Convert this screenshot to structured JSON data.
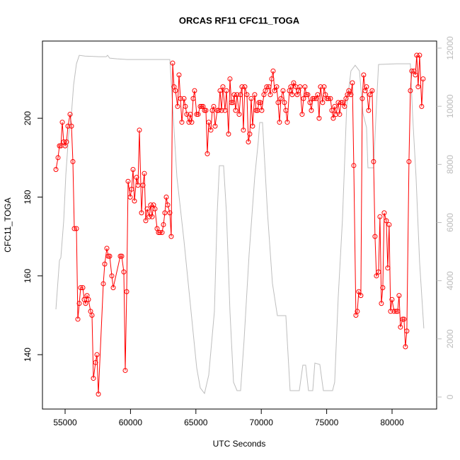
{
  "chart_data": {
    "type": "line",
    "title": "ORCAS RF11 CFC11_TOGA",
    "x_label": "UTC Seconds",
    "y_label": "CFC11_TOGA",
    "xlim": [
      53268,
      83409
    ],
    "xticks": [
      55000,
      60000,
      65000,
      70000,
      75000,
      80000
    ],
    "ylim": [
      126.2,
      219.6
    ],
    "yticks": [
      140,
      160,
      180,
      200
    ],
    "y2lim": [
      -414,
      12243
    ],
    "y2ticks": [
      0,
      2000,
      4000,
      6000,
      8000,
      10000,
      12000
    ],
    "series": [
      {
        "color": "#ff0000",
        "markers": true,
        "x": [
          54297,
          54459,
          54567,
          54675,
          54784,
          54892,
          55000,
          55108,
          55216,
          55379,
          55487,
          55595,
          55703,
          55866,
          55974,
          56082,
          56190,
          56353,
          56461,
          56569,
          56677,
          56785,
          56948,
          57056,
          57164,
          57326,
          57435,
          57543,
          57921,
          58030,
          58192,
          58300,
          58408,
          58571,
          58679,
          59220,
          59328,
          59490,
          59599,
          59707,
          59815,
          59977,
          60085,
          60194,
          60302,
          60464,
          60572,
          60681,
          60843,
          60951,
          61059,
          61167,
          61276,
          61438,
          61546,
          61654,
          61763,
          61871,
          62033,
          62141,
          62249,
          62412,
          62520,
          62628,
          62736,
          62845,
          63007,
          63115,
          63223,
          63331,
          63440,
          63602,
          63710,
          63818,
          63927,
          64089,
          64197,
          64305,
          64468,
          64576,
          64684,
          64792,
          64900,
          65063,
          65171,
          65333,
          65441,
          65550,
          65658,
          65766,
          65874,
          65982,
          66145,
          66253,
          66361,
          66469,
          66632,
          66740,
          66848,
          66956,
          67064,
          67227,
          67335,
          67497,
          67605,
          67714,
          67822,
          67930,
          68038,
          68146,
          68309,
          68417,
          68525,
          68633,
          68741,
          68904,
          69012,
          69120,
          69228,
          69337,
          69499,
          69607,
          69715,
          69823,
          69932,
          70040,
          70202,
          70310,
          70419,
          70581,
          70689,
          70797,
          70905,
          71014,
          71176,
          71284,
          71392,
          71501,
          71663,
          71771,
          71879,
          71987,
          72150,
          72258,
          72366,
          72474,
          72637,
          72745,
          72853,
          72961,
          73124,
          73232,
          73340,
          73448,
          73556,
          73719,
          73827,
          73935,
          74043,
          74206,
          74314,
          74422,
          74530,
          74692,
          74801,
          74909,
          75017,
          75125,
          75288,
          75396,
          75504,
          75612,
          75720,
          75883,
          75991,
          76099,
          76207,
          76370,
          76478,
          76586,
          76694,
          76856,
          76965,
          77073,
          77235,
          77343,
          77452,
          77614,
          77722,
          77830,
          77938,
          78047,
          78209,
          78317,
          78479,
          78588,
          78696,
          78804,
          78966,
          79075,
          79183,
          79291,
          79399,
          79561,
          79670,
          79778,
          79886,
          79994,
          80157,
          80319,
          80427,
          80535,
          80643,
          80806,
          80914,
          81022,
          81130,
          81293,
          81401,
          81509,
          81671,
          81780,
          81888,
          81996,
          82104,
          82266,
          82375
        ],
        "values": [
          187,
          190,
          193,
          193,
          199,
          194,
          193,
          194,
          198,
          201,
          198,
          189,
          172,
          172,
          149,
          153,
          157,
          157,
          154,
          153,
          155,
          154,
          151,
          150,
          134,
          138,
          140,
          130,
          158,
          163,
          167,
          165,
          165,
          160,
          157,
          165,
          165,
          161,
          136,
          156,
          184,
          180,
          182,
          187,
          179,
          185,
          183,
          197,
          176,
          183,
          186,
          174,
          177,
          175,
          178,
          175,
          178,
          177,
          172,
          171,
          171,
          171,
          173,
          176,
          180,
          178,
          176,
          170,
          214,
          208,
          207,
          203,
          211,
          205,
          199,
          205,
          203,
          201,
          199,
          201,
          199,
          205,
          207,
          201,
          201,
          203,
          203,
          203,
          202,
          202,
          191,
          199,
          197,
          202,
          203,
          198,
          202,
          202,
          207,
          202,
          208,
          202,
          207,
          196,
          210,
          204,
          204,
          206,
          202,
          206,
          201,
          206,
          208,
          197,
          208,
          206,
          194,
          196,
          205,
          198,
          206,
          202,
          202,
          204,
          204,
          202,
          206,
          207,
          208,
          208,
          206,
          210,
          212,
          207,
          208,
          204,
          199,
          205,
          207,
          204,
          202,
          199,
          207,
          208,
          206,
          209,
          208,
          206,
          207,
          208,
          201,
          205,
          208,
          206,
          206,
          204,
          202,
          205,
          205,
          205,
          206,
          200,
          208,
          204,
          208,
          206,
          205,
          205,
          205,
          202,
          200,
          203,
          201,
          204,
          201,
          204,
          204,
          203,
          205,
          206,
          207,
          206,
          209,
          188,
          150,
          151,
          156,
          155,
          205,
          211,
          207,
          208,
          202,
          206,
          207,
          189,
          170,
          160,
          161,
          175,
          153,
          157,
          176,
          174,
          162,
          173,
          151,
          154,
          151,
          151,
          151,
          155,
          147,
          149,
          149,
          142,
          146,
          189,
          207,
          212,
          212,
          211,
          216,
          208,
          216,
          203,
          210
        ]
      },
      {
        "color": "#bebebe",
        "axis": "y2",
        "x": [
          54297,
          54567,
          54675,
          54892,
          55054,
          55271,
          55487,
          55649,
          55866,
          56082,
          56515,
          57597,
          58138,
          58246,
          58408,
          58949,
          59761,
          60843,
          61925,
          63007,
          63223,
          63548,
          64089,
          64630,
          65063,
          65333,
          65658,
          65982,
          66415,
          66632,
          66794,
          67118,
          67335,
          67605,
          67876,
          68146,
          68417,
          68687,
          69066,
          69499,
          69769,
          69878,
          70094,
          70473,
          70851,
          71230,
          71663,
          71879,
          72204,
          72420,
          72907,
          73178,
          73394,
          73610,
          73935,
          74097,
          74476,
          74747,
          75450,
          75612,
          75883,
          76207,
          76532,
          76856,
          77181,
          77506,
          77776,
          78047,
          78155,
          78588,
          78804,
          78966,
          80319,
          81401,
          81564,
          81834,
          82104,
          82429
        ],
        "values": [
          3017,
          4696,
          4793,
          6058,
          7640,
          9027,
          9757,
          10730,
          11460,
          11752,
          11727,
          11703,
          11703,
          11752,
          11655,
          11630,
          11606,
          11606,
          11606,
          11606,
          10000,
          7567,
          5377,
          2944,
          998,
          316,
          122,
          754,
          2944,
          6350,
          7956,
          7956,
          6350,
          2944,
          511,
          219,
          219,
          1971,
          4891,
          7567,
          8783,
          9440,
          9440,
          6350,
          3917,
          2798,
          2798,
          2798,
          219,
          219,
          219,
          1095,
          1095,
          219,
          219,
          1168,
          1119,
          219,
          219,
          511,
          3431,
          6107,
          10000,
          11217,
          11411,
          11217,
          9757,
          9270,
          7883,
          7883,
          10000,
          11436,
          11460,
          11460,
          9757,
          7567,
          4647,
          2360
        ]
      }
    ]
  }
}
